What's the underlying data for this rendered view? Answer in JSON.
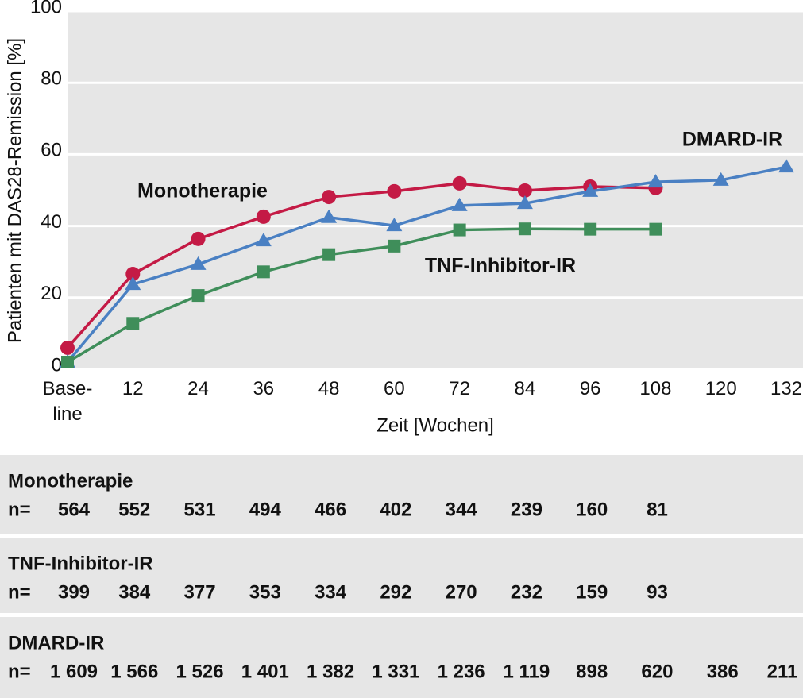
{
  "chart_data": {
    "type": "line",
    "ylabel": "Patienten mit DAS28-Remission [%]",
    "xlabel": "Zeit [Wochen]",
    "x": [
      0,
      12,
      24,
      36,
      48,
      60,
      72,
      84,
      96,
      108,
      120,
      132
    ],
    "xlim": [
      0,
      132
    ],
    "xticks": [
      {
        "value": 0,
        "label": "Base-\nline"
      },
      12,
      24,
      36,
      48,
      60,
      72,
      84,
      96,
      108,
      120,
      132
    ],
    "ylim": [
      0,
      100
    ],
    "yticks": [
      0,
      20,
      40,
      60,
      80,
      100
    ],
    "grid": true,
    "series": [
      {
        "name": "Monotherapie",
        "color": "#c41a45",
        "marker": "circle",
        "values": [
          6,
          26.6,
          36.4,
          42.6,
          48.1,
          49.7,
          51.9,
          49.9,
          51,
          50.6,
          null,
          null
        ]
      },
      {
        "name": "DMARD-IR",
        "color": "#4a80c3",
        "marker": "triangle",
        "values": [
          2,
          23.7,
          29.3,
          35.9,
          42.4,
          40.1,
          45.7,
          46.3,
          49.7,
          52.3,
          52.8,
          56.5
        ]
      },
      {
        "name": "TNF-Inhibitor-IR",
        "color": "#3f8e5a",
        "marker": "square",
        "values": [
          2,
          12.8,
          20.6,
          27.2,
          32,
          34.4,
          38.9,
          39.2,
          39.1,
          39.1,
          null,
          null
        ]
      }
    ]
  },
  "table": {
    "groups": [
      {
        "name": "Monotherapie",
        "color": "#c41a45",
        "prefix": "n=",
        "counts": [
          564,
          552,
          531,
          494,
          466,
          402,
          344,
          239,
          160,
          81
        ]
      },
      {
        "name": "TNF-Inhibitor-IR",
        "color": "#3f8e5a",
        "prefix": "n=",
        "counts": [
          399,
          384,
          377,
          353,
          334,
          292,
          270,
          232,
          159,
          93
        ]
      },
      {
        "name": "DMARD-IR",
        "color": "#4a80c3",
        "prefix": "n=",
        "counts": [
          "1 609",
          "1 566",
          "1 526",
          "1 401",
          "1 382",
          "1 331",
          "1 236",
          "1 119",
          898,
          620,
          386,
          211
        ]
      }
    ]
  }
}
